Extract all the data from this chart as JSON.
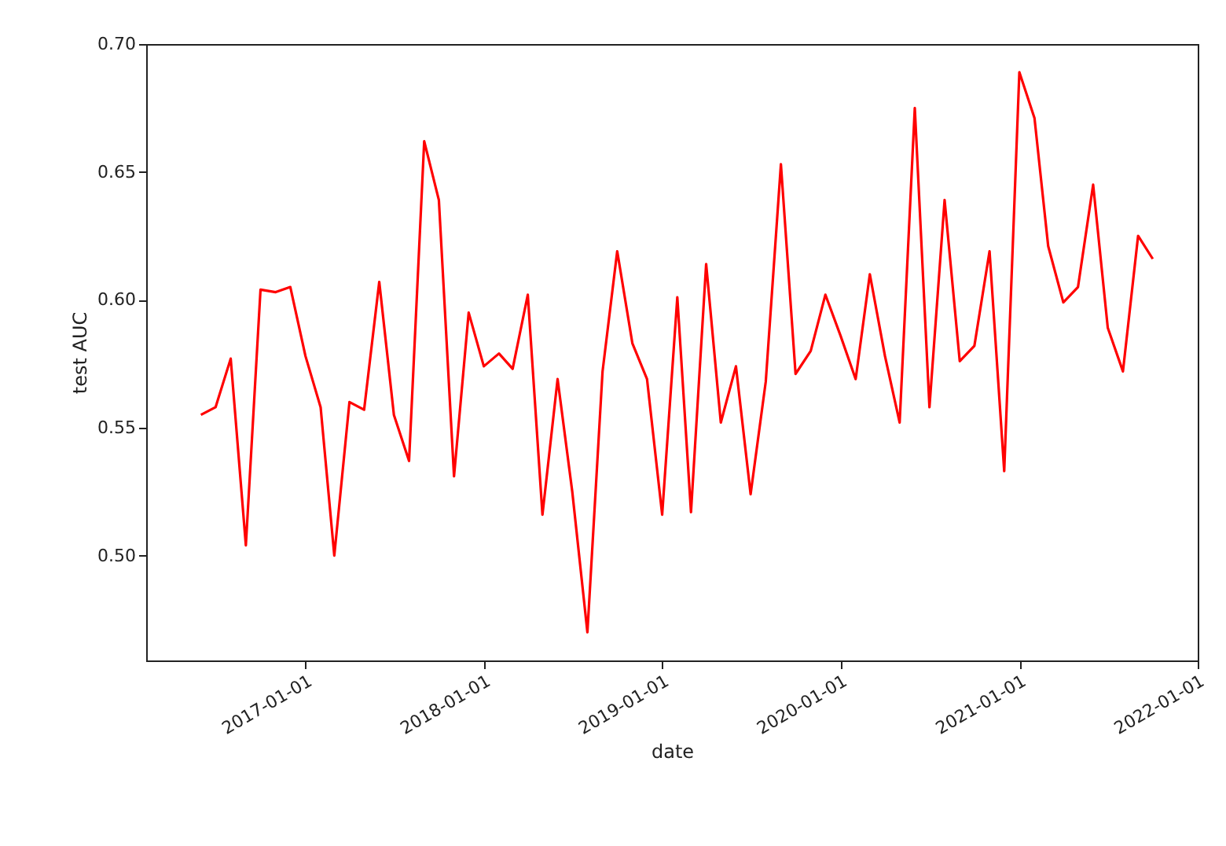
{
  "chart_data": {
    "type": "line",
    "xlabel": "date",
    "ylabel": "test AUC",
    "x": [
      "2016-06",
      "2016-07",
      "2016-08",
      "2016-09",
      "2016-10",
      "2016-11",
      "2016-12",
      "2017-01",
      "2017-02",
      "2017-03",
      "2017-04",
      "2017-05",
      "2017-06",
      "2017-07",
      "2017-08",
      "2017-09",
      "2017-10",
      "2017-11",
      "2017-12",
      "2018-01",
      "2018-02",
      "2018-03",
      "2018-04",
      "2018-05",
      "2018-06",
      "2018-07",
      "2018-08",
      "2018-09",
      "2018-10",
      "2018-11",
      "2018-12",
      "2019-01",
      "2019-02",
      "2019-03",
      "2019-04",
      "2019-05",
      "2019-06",
      "2019-07",
      "2019-08",
      "2019-09",
      "2019-10",
      "2019-11",
      "2019-12",
      "2020-01",
      "2020-02",
      "2020-03",
      "2020-04",
      "2020-05",
      "2020-06",
      "2020-07",
      "2020-08",
      "2020-09",
      "2020-10",
      "2020-11",
      "2020-12",
      "2021-01",
      "2021-02",
      "2021-03",
      "2021-04",
      "2021-05",
      "2021-06",
      "2021-07",
      "2021-08",
      "2021-09",
      "2021-10"
    ],
    "series": [
      {
        "color": "#ff0000",
        "values": [
          0.555,
          0.558,
          0.577,
          0.504,
          0.604,
          0.603,
          0.605,
          0.578,
          0.558,
          0.5,
          0.56,
          0.557,
          0.607,
          0.555,
          0.537,
          0.662,
          0.639,
          0.531,
          0.595,
          0.574,
          0.579,
          0.573,
          0.602,
          0.516,
          0.569,
          0.525,
          0.47,
          0.572,
          0.619,
          0.583,
          0.569,
          0.516,
          0.601,
          0.517,
          0.614,
          0.552,
          0.574,
          0.524,
          0.568,
          0.653,
          0.571,
          0.58,
          0.602,
          0.586,
          0.569,
          0.61,
          0.578,
          0.552,
          0.675,
          0.558,
          0.639,
          0.576,
          0.582,
          0.619,
          0.533,
          0.689,
          0.671,
          0.621,
          0.599,
          0.605,
          0.645,
          0.589,
          0.572,
          0.625,
          0.616
        ]
      }
    ],
    "xlim": [
      "2016-02-10",
      "2022-01-01"
    ],
    "xticks": [
      "2017-01-01",
      "2018-01-01",
      "2019-01-01",
      "2020-01-01",
      "2021-01-01",
      "2022-01-01"
    ],
    "ylim": [
      0.459,
      0.7
    ],
    "yticks": [
      {
        "value": 0.5,
        "label": "0.50"
      },
      {
        "value": 0.55,
        "label": "0.55"
      },
      {
        "value": 0.6,
        "label": "0.60"
      },
      {
        "value": 0.65,
        "label": "0.65"
      },
      {
        "value": 0.7,
        "label": "0.70"
      }
    ],
    "grid": false,
    "marker": "none",
    "line_style": "solid"
  }
}
